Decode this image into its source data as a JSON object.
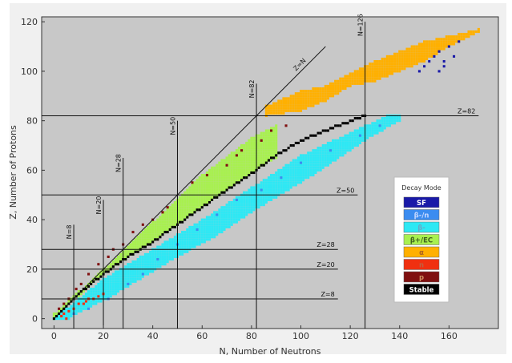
{
  "chart_data": {
    "type": "scatter",
    "xlabel": "N, Number of Neutrons",
    "ylabel": "Z, Number of Protons",
    "xlim": [
      -5,
      180
    ],
    "ylim": [
      -4,
      122
    ],
    "x_ticks": [
      0,
      20,
      40,
      60,
      80,
      100,
      120,
      140,
      160
    ],
    "y_ticks": [
      0,
      20,
      40,
      60,
      80,
      100,
      120
    ],
    "grid": false,
    "background": "#c8c8c8",
    "legend": {
      "title": "Decay Mode",
      "placement": "right",
      "entries": [
        {
          "label": "SF",
          "color": "#1a1aa8",
          "text_color": "#ffffff"
        },
        {
          "label": "β-/n",
          "color": "#3b8cf0",
          "text_color": "#c8d8ff"
        },
        {
          "label": "β-",
          "color": "#2ee8f4",
          "text_color": "#6aa8c8"
        },
        {
          "label": "β+/EC",
          "color": "#a8f050",
          "text_color": "#406020"
        },
        {
          "label": "α",
          "color": "#ffb000",
          "text_color": "#a86020"
        },
        {
          "label": "n",
          "color": "#f03010",
          "text_color": "#c06040"
        },
        {
          "label": "p",
          "color": "#801010",
          "text_color": "#d09060"
        },
        {
          "label": "Stable",
          "color": "#000000",
          "text_color": "#ffffff"
        }
      ]
    },
    "magic_neutron_lines": [
      {
        "label": "N=8",
        "n": 8,
        "z_min": 0,
        "z_max": 38
      },
      {
        "label": "N=20",
        "n": 20,
        "z_min": 0,
        "z_max": 48
      },
      {
        "label": "N=28",
        "n": 28,
        "z_min": 0,
        "z_max": 65
      },
      {
        "label": "N=50",
        "n": 50,
        "z_min": 0,
        "z_max": 80
      },
      {
        "label": "N=82",
        "n": 82,
        "z_min": 0,
        "z_max": 95
      },
      {
        "label": "N=126",
        "n": 126,
        "z_min": 0,
        "z_max": 120
      }
    ],
    "magic_proton_lines": [
      {
        "label": "Z=8",
        "z": 8,
        "n_min": -5,
        "n_max": 115
      },
      {
        "label": "Z=20",
        "z": 20,
        "n_min": -5,
        "n_max": 115
      },
      {
        "label": "Z=28",
        "z": 28,
        "n_min": -5,
        "n_max": 115
      },
      {
        "label": "Z=50",
        "z": 50,
        "n_min": -5,
        "n_max": 123
      },
      {
        "label": "Z=82",
        "z": 82,
        "n_min": -5,
        "n_max": 172
      }
    ],
    "diagonal": {
      "label": "Z=N",
      "from": [
        0,
        0
      ],
      "to": [
        110,
        110
      ]
    },
    "series": [
      {
        "name": "Stable",
        "valley": [
          [
            0,
            0
          ],
          [
            10,
            10
          ],
          [
            20,
            18
          ],
          [
            30,
            25
          ],
          [
            40,
            31
          ],
          [
            50,
            38
          ],
          [
            60,
            45
          ],
          [
            70,
            52
          ],
          [
            82,
            60
          ],
          [
            90,
            66
          ],
          [
            100,
            72
          ],
          [
            110,
            76
          ],
          [
            126,
            82
          ]
        ],
        "half_width": 1
      },
      {
        "name": "β+/EC",
        "band_from": [
          [
            0,
            2
          ],
          [
            20,
            20
          ],
          [
            40,
            39
          ],
          [
            60,
            58
          ],
          [
            80,
            73
          ],
          [
            90,
            78
          ]
        ],
        "band_to": [
          [
            0,
            0
          ],
          [
            20,
            18
          ],
          [
            40,
            31
          ],
          [
            60,
            45
          ],
          [
            80,
            59
          ],
          [
            90,
            65
          ]
        ]
      },
      {
        "name": "β-",
        "band_from": [
          [
            0,
            0
          ],
          [
            20,
            16
          ],
          [
            40,
            28
          ],
          [
            60,
            40
          ],
          [
            80,
            53
          ],
          [
            100,
            66
          ],
          [
            126,
            78
          ],
          [
            135,
            82
          ]
        ],
        "band_to": [
          [
            6,
            0
          ],
          [
            25,
            10
          ],
          [
            45,
            22
          ],
          [
            65,
            33
          ],
          [
            85,
            46
          ],
          [
            105,
            58
          ],
          [
            126,
            72
          ],
          [
            140,
            80
          ]
        ]
      },
      {
        "name": "β-/n",
        "points": [
          [
            8,
            2
          ],
          [
            14,
            4
          ],
          [
            22,
            8
          ],
          [
            30,
            14
          ],
          [
            36,
            18
          ],
          [
            42,
            24
          ],
          [
            50,
            30
          ],
          [
            58,
            36
          ],
          [
            66,
            42
          ],
          [
            74,
            48
          ],
          [
            84,
            52
          ],
          [
            92,
            57
          ],
          [
            100,
            63
          ],
          [
            112,
            68
          ],
          [
            124,
            74
          ],
          [
            132,
            78
          ]
        ]
      },
      {
        "name": "α",
        "band": [
          [
            86,
            82
          ],
          [
            100,
            84
          ],
          [
            110,
            88
          ],
          [
            120,
            94
          ],
          [
            130,
            96
          ],
          [
            140,
            100
          ],
          [
            150,
            104
          ],
          [
            160,
            110
          ],
          [
            172,
            116
          ],
          [
            150,
            112
          ],
          [
            130,
            104
          ],
          [
            110,
            94
          ],
          [
            100,
            92
          ],
          [
            90,
            86
          ]
        ]
      },
      {
        "name": "SF",
        "points": [
          [
            148,
            100
          ],
          [
            150,
            102
          ],
          [
            152,
            104
          ],
          [
            154,
            106
          ],
          [
            156,
            100
          ],
          [
            156,
            108
          ],
          [
            158,
            102
          ],
          [
            158,
            104
          ],
          [
            160,
            110
          ],
          [
            162,
            106
          ],
          [
            164,
            112
          ]
        ]
      },
      {
        "name": "n",
        "points": [
          [
            3,
            1
          ],
          [
            4,
            2
          ],
          [
            6,
            3
          ],
          [
            8,
            4
          ],
          [
            10,
            6
          ],
          [
            12,
            6
          ],
          [
            13,
            7
          ],
          [
            14,
            8
          ],
          [
            16,
            8
          ],
          [
            18,
            9
          ],
          [
            20,
            10
          ],
          [
            5,
            0
          ]
        ]
      },
      {
        "name": "p",
        "points": [
          [
            2,
            4
          ],
          [
            4,
            6
          ],
          [
            6,
            8
          ],
          [
            9,
            12
          ],
          [
            11,
            14
          ],
          [
            14,
            18
          ],
          [
            18,
            22
          ],
          [
            22,
            25
          ],
          [
            24,
            28
          ],
          [
            28,
            30
          ],
          [
            32,
            35
          ],
          [
            36,
            38
          ],
          [
            40,
            40
          ],
          [
            44,
            43
          ],
          [
            46,
            45
          ],
          [
            56,
            55
          ],
          [
            62,
            58
          ],
          [
            70,
            62
          ],
          [
            74,
            66
          ],
          [
            76,
            68
          ],
          [
            84,
            72
          ],
          [
            88,
            76
          ],
          [
            94,
            78
          ]
        ]
      }
    ]
  }
}
